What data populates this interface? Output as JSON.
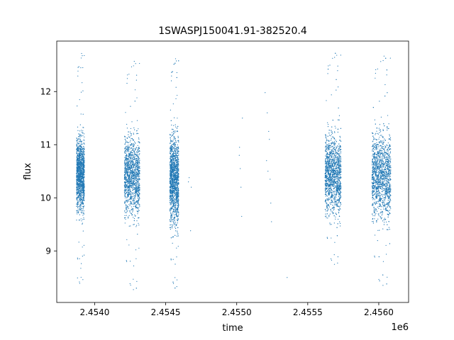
{
  "chart_data": {
    "type": "scatter",
    "title": "1SWASPJ150041.91-382520.4",
    "xlabel": "time",
    "ylabel": "flux",
    "x_offset_label": "1e6",
    "xlim": [
      2453733,
      2456210
    ],
    "ylim": [
      8.03,
      12.95
    ],
    "x_ticks": [
      {
        "value": 2454000,
        "label": "2.4540"
      },
      {
        "value": 2454500,
        "label": "2.4545"
      },
      {
        "value": 2455000,
        "label": "2.4550"
      },
      {
        "value": 2455500,
        "label": "2.4555"
      },
      {
        "value": 2456000,
        "label": "2.4560"
      }
    ],
    "y_ticks": [
      {
        "value": 9,
        "label": "9"
      },
      {
        "value": 10,
        "label": "10"
      },
      {
        "value": 11,
        "label": "11"
      },
      {
        "value": 12,
        "label": "12"
      }
    ],
    "marker_color": "#1f77b4",
    "grid": false,
    "legend": "none",
    "series": [
      {
        "observing_seasons": [
          {
            "x_range": [
              2453872,
              2453928
            ],
            "median": 10.45,
            "spread": 0.32,
            "min": 8.25,
            "max": 12.75,
            "points": 1400
          },
          {
            "x_range": [
              2454209,
              2454318
            ],
            "median": 10.42,
            "spread": 0.35,
            "min": 8.22,
            "max": 12.6,
            "points": 1500
          },
          {
            "x_range": [
              2454529,
              2454592
            ],
            "median": 10.35,
            "spread": 0.4,
            "min": 8.25,
            "max": 12.65,
            "points": 1800
          },
          {
            "x_range": [
              2455622,
              2455735
            ],
            "median": 10.45,
            "spread": 0.35,
            "min": 8.7,
            "max": 12.75,
            "points": 1700
          },
          {
            "x_range": [
              2455952,
              2456085
            ],
            "median": 10.42,
            "spread": 0.38,
            "min": 8.3,
            "max": 12.7,
            "points": 1800
          }
        ],
        "isolated_points": [
          [
            2454660,
            10.3
          ],
          [
            2454665,
            10.38
          ],
          [
            2454675,
            9.38
          ],
          [
            2454680,
            10.2
          ],
          [
            2455020,
            10.95
          ],
          [
            2455025,
            10.55
          ],
          [
            2455030,
            10.2
          ],
          [
            2455035,
            9.65
          ],
          [
            2455040,
            11.5
          ],
          [
            2455018,
            10.8
          ],
          [
            2455200,
            11.98
          ],
          [
            2455215,
            11.6
          ],
          [
            2455225,
            11.25
          ],
          [
            2455230,
            11.1
          ],
          [
            2455210,
            10.7
          ],
          [
            2455220,
            10.5
          ],
          [
            2455235,
            10.35
          ],
          [
            2455240,
            9.9
          ],
          [
            2455245,
            9.55
          ],
          [
            2455355,
            8.5
          ]
        ]
      }
    ]
  }
}
